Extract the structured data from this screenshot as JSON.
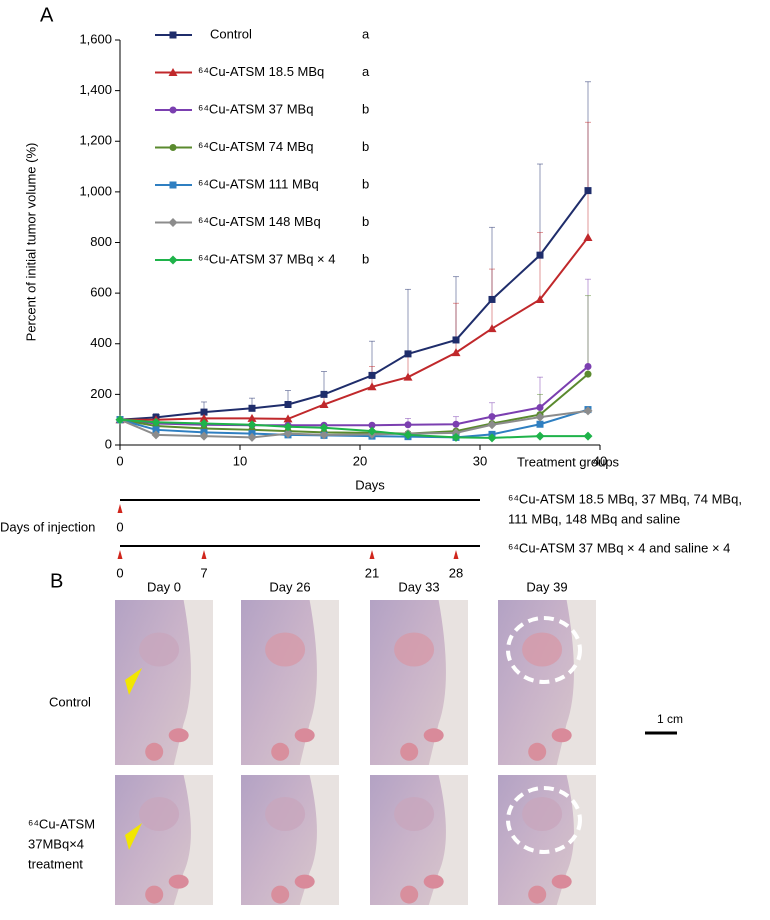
{
  "chart_data": {
    "type": "line",
    "panel": "A",
    "x_label": "Days",
    "y_label": "Percent of initial tumor volume (%)",
    "note": "Treatment groups",
    "x": [
      0,
      3,
      7,
      11,
      14,
      17,
      21,
      24,
      28,
      31,
      35,
      39
    ],
    "xlim": [
      0,
      40
    ],
    "xticks": [
      0,
      10,
      20,
      30,
      40
    ],
    "ylim": [
      0,
      1600
    ],
    "yticks": [
      0,
      200,
      400,
      600,
      800,
      {
        "value": 1000,
        "label": "1,000"
      },
      {
        "value": 1200,
        "label": "1,200"
      },
      {
        "value": 1400,
        "label": "1,400"
      },
      {
        "value": 1600,
        "label": "1,600"
      }
    ],
    "series": [
      {
        "name": "Control",
        "group": "a",
        "color": "#1f2d6b",
        "marker": "square",
        "values": [
          100,
          109,
          130,
          145,
          160,
          200,
          275,
          360,
          415,
          575,
          750,
          1005
        ],
        "errors": [
          null,
          15,
          40,
          40,
          55,
          90,
          135,
          255,
          250,
          285,
          360,
          430
        ]
      },
      {
        "name": "⁶⁴Cu-ATSM 18.5 MBq",
        "group": "a",
        "color": "#c0282b",
        "marker": "triangle",
        "values": [
          100,
          100,
          105,
          105,
          103,
          160,
          230,
          268,
          365,
          460,
          575,
          820
        ],
        "errors": [
          null,
          null,
          null,
          null,
          null,
          40,
          80,
          100,
          195,
          235,
          265,
          455
        ]
      },
      {
        "name": "⁶⁴Cu-ATSM 37 MBq",
        "group": "b",
        "color": "#7b3fb0",
        "marker": "circle",
        "values": [
          100,
          85,
          80,
          78,
          78,
          78,
          78,
          80,
          82,
          112,
          148,
          310
        ],
        "errors": [
          null,
          null,
          null,
          null,
          null,
          null,
          null,
          25,
          30,
          55,
          120,
          345
        ]
      },
      {
        "name": "⁶⁴Cu-ATSM 74 MBq",
        "group": "b",
        "color": "#5a8a2e",
        "marker": "circle",
        "values": [
          100,
          75,
          65,
          60,
          55,
          50,
          48,
          45,
          55,
          85,
          120,
          280
        ],
        "errors": [
          null,
          null,
          null,
          null,
          null,
          null,
          null,
          null,
          null,
          null,
          80,
          310
        ]
      },
      {
        "name": "⁶⁴Cu-ATSM 111 MBq",
        "group": "b",
        "color": "#2f7fc1",
        "marker": "square",
        "values": [
          100,
          60,
          50,
          45,
          40,
          38,
          35,
          33,
          30,
          42,
          82,
          140
        ],
        "errors": [
          null,
          null,
          null,
          null,
          null,
          null,
          null,
          null,
          null,
          null,
          null,
          null
        ]
      },
      {
        "name": "⁶⁴Cu-ATSM 148 MBq",
        "group": "b",
        "color": "#8c8c8c",
        "marker": "diamond",
        "values": [
          100,
          40,
          35,
          30,
          45,
          40,
          42,
          45,
          48,
          80,
          110,
          135
        ],
        "errors": [
          null,
          null,
          null,
          null,
          null,
          null,
          null,
          null,
          null,
          null,
          null,
          null
        ]
      },
      {
        "name": "⁶⁴Cu-ATSM 37 MBq × 4",
        "group": "b",
        "color": "#1fb34a",
        "marker": "diamond",
        "values": [
          100,
          90,
          85,
          80,
          72,
          68,
          55,
          40,
          30,
          28,
          35,
          35
        ],
        "errors": [
          null,
          null,
          null,
          null,
          null,
          null,
          null,
          null,
          null,
          null,
          null,
          null
        ]
      }
    ]
  },
  "timeline": {
    "label": "Days of injection",
    "end_day": 30,
    "rows": [
      {
        "days": [
          0
        ],
        "text": [
          "⁶⁴Cu-ATSM 18.5 MBq, 37 MBq, 74 MBq,",
          "111 MBq, 148 MBq and saline"
        ]
      },
      {
        "days": [
          0,
          7,
          21,
          28
        ],
        "text": [
          "⁶⁴Cu-ATSM 37 MBq × 4 and saline × 4"
        ]
      }
    ]
  },
  "panel_b": {
    "label": "B",
    "columns": [
      "Day 0",
      "Day 26",
      "Day 33",
      "Day 39"
    ],
    "rows": [
      {
        "label": [
          "Control"
        ]
      },
      {
        "label": [
          "⁶⁴Cu-ATSM",
          "37MBq×4",
          "treatment"
        ]
      }
    ],
    "scale_bar": "1 cm"
  }
}
